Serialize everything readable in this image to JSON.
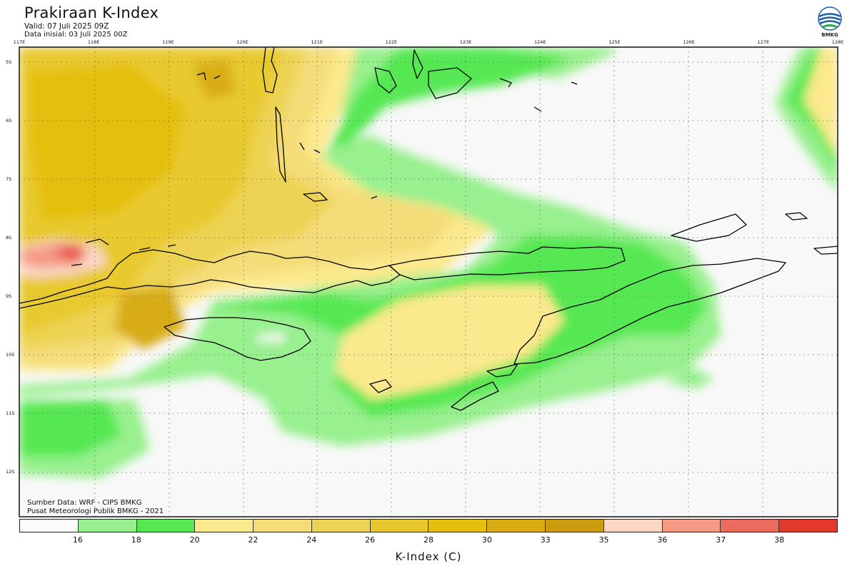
{
  "header": {
    "title": "Prakiraan K-Index",
    "valid": "Valid: 07 Juli 2025 09Z",
    "init": "Data inisial: 03 Juli 2025 00Z",
    "logo_text": "BMKG"
  },
  "axes": {
    "longitude_labels": [
      "117E",
      "118E",
      "119E",
      "120E",
      "121E",
      "122E",
      "123E",
      "124E",
      "125E",
      "126E",
      "127E",
      "128E"
    ],
    "latitude_labels": [
      "5S",
      "6S",
      "7S",
      "8S",
      "9S",
      "10S",
      "11S",
      "12S"
    ]
  },
  "footer": {
    "source": "Sumber Data: WRF - CIPS BMKG",
    "producer": "Pusat Meteorologi Publik BMKG - 2021"
  },
  "legend": {
    "title": "K-Index (C)",
    "tick_labels": [
      "16",
      "18",
      "20",
      "22",
      "24",
      "26",
      "28",
      "30",
      "33",
      "35",
      "36",
      "37",
      "38"
    ],
    "colors": [
      "#fbfbfb",
      "#98f08e",
      "#56e852",
      "#fbe98d",
      "#f4dc78",
      "#edd352",
      "#e8c92d",
      "#e5bf0e",
      "#d8ac12",
      "#cc9c0f",
      "#fbd7c4",
      "#f59a85",
      "#ed6a5e",
      "#e2392c"
    ]
  },
  "colors": {
    "sea_background": "#f8f8f8",
    "coastline": "#000000",
    "gridline": "#666666"
  }
}
